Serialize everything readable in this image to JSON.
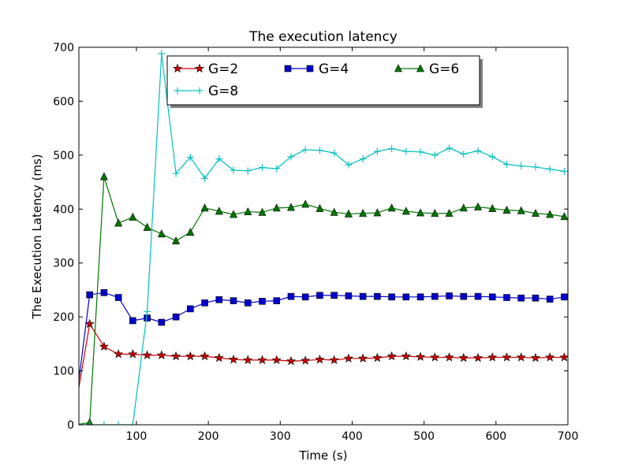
{
  "chart_data": {
    "type": "line",
    "title": "The execution latency",
    "xlabel": "Time (s)",
    "ylabel": "The Execution Latency (ms)",
    "xlim": [
      20,
      700
    ],
    "ylim": [
      0,
      700
    ],
    "x_ticks": [
      100,
      200,
      300,
      400,
      500,
      600,
      700
    ],
    "y_ticks": [
      0,
      100,
      200,
      300,
      400,
      500,
      600,
      700
    ],
    "grid": false,
    "legend_placement": "upper-center",
    "x": [
      15,
      35,
      55,
      75,
      95,
      115,
      135,
      155,
      175,
      195,
      215,
      235,
      255,
      275,
      295,
      315,
      335,
      355,
      375,
      395,
      415,
      435,
      455,
      475,
      495,
      515,
      535,
      555,
      575,
      595,
      615,
      635,
      655,
      675,
      695
    ],
    "series": [
      {
        "name": "G=2",
        "color": "#cc0000",
        "marker": "star",
        "values": [
          30,
          187,
          145,
          131,
          131,
          129,
          129,
          127,
          127,
          127,
          124,
          121,
          120,
          120,
          120,
          118,
          119,
          121,
          120,
          123,
          123,
          124,
          127,
          127,
          126,
          125,
          125,
          124,
          124,
          125,
          125,
          125,
          124,
          125,
          125
        ]
      },
      {
        "name": "G=4",
        "color": "#0000cc",
        "marker": "square",
        "values": [
          30,
          241,
          245,
          236,
          193,
          198,
          190,
          200,
          215,
          226,
          232,
          230,
          226,
          229,
          230,
          238,
          237,
          240,
          240,
          239,
          238,
          238,
          237,
          237,
          237,
          238,
          239,
          238,
          238,
          237,
          236,
          235,
          235,
          233,
          237
        ]
      },
      {
        "name": "G=6",
        "color": "#007700",
        "marker": "triangle",
        "values": [
          0,
          4,
          460,
          374,
          385,
          366,
          354,
          341,
          357,
          402,
          396,
          390,
          395,
          394,
          402,
          403,
          409,
          401,
          394,
          391,
          392,
          393,
          402,
          396,
          393,
          392,
          392,
          402,
          404,
          401,
          398,
          397,
          392,
          390,
          386
        ]
      },
      {
        "name": "G=8",
        "color": "#00bfbf",
        "marker": "plus",
        "values": [
          0,
          0,
          0,
          0,
          0,
          210,
          688,
          466,
          496,
          457,
          493,
          472,
          471,
          477,
          475,
          497,
          510,
          509,
          504,
          482,
          493,
          507,
          512,
          507,
          506,
          500,
          513,
          502,
          508,
          497,
          483,
          480,
          478,
          474,
          470
        ]
      }
    ]
  }
}
